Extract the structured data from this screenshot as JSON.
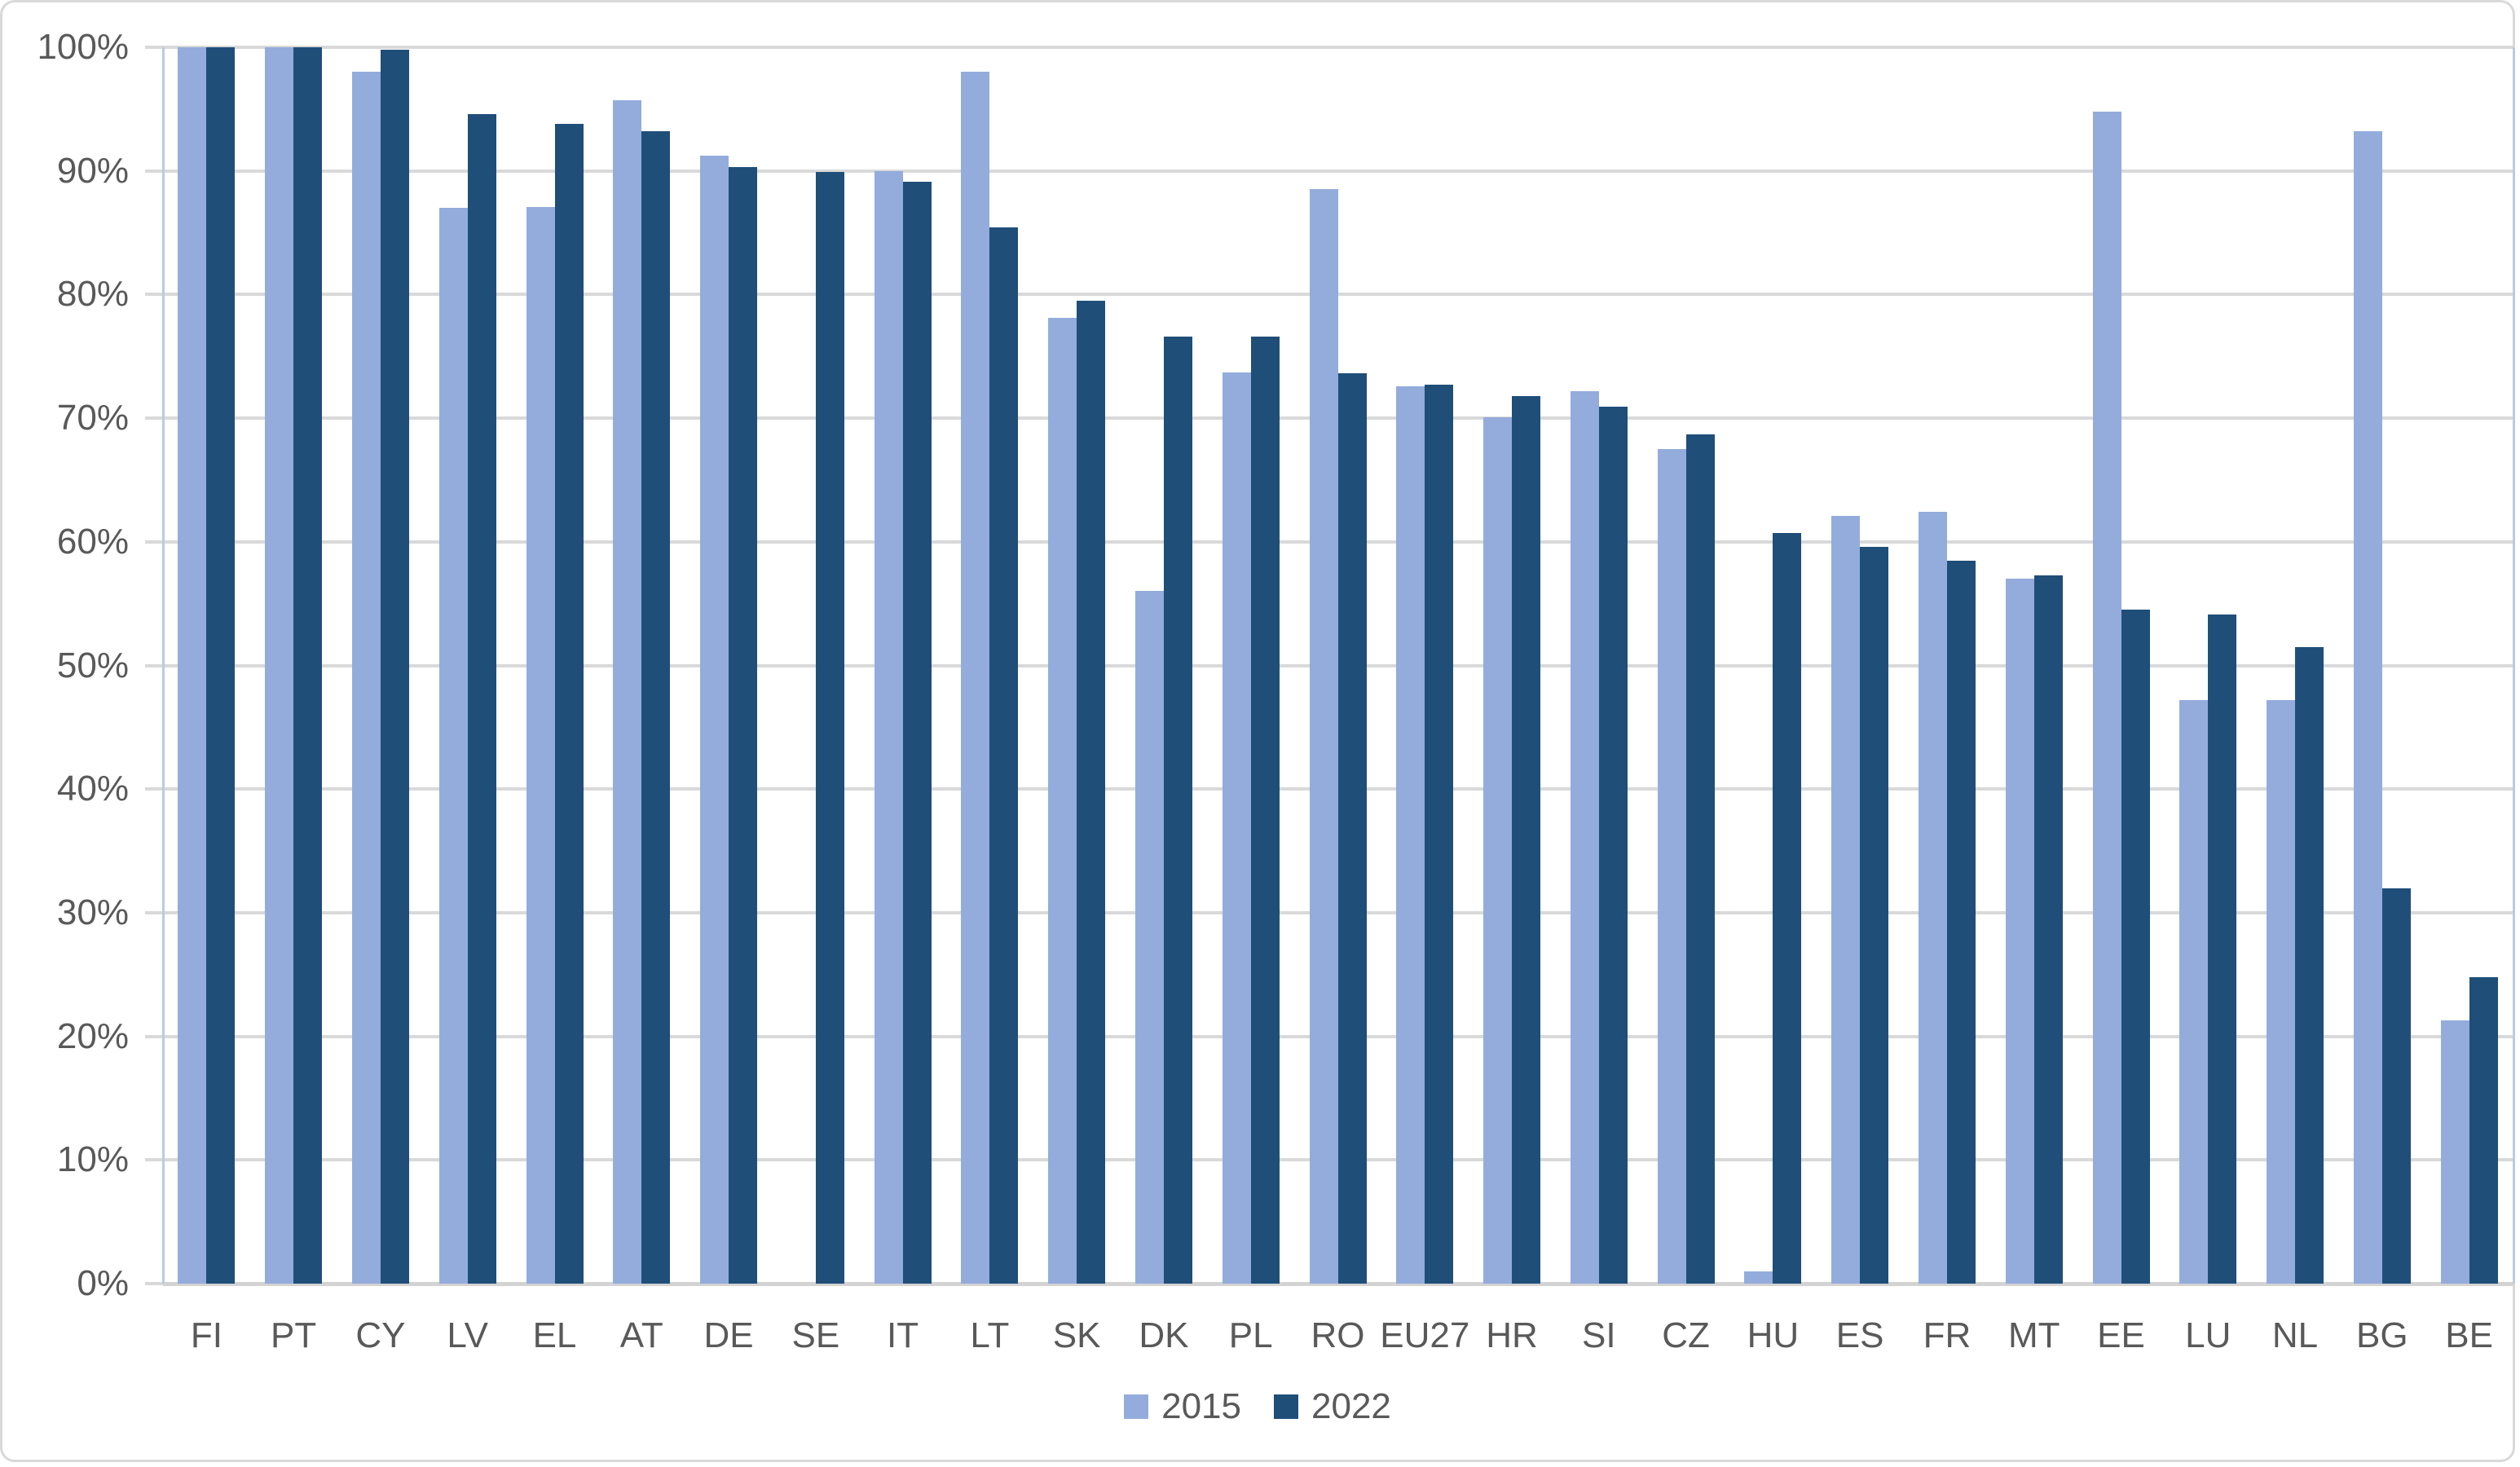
{
  "chart_data": {
    "type": "bar",
    "title": "",
    "xlabel": "",
    "ylabel": "",
    "categories": [
      "FI",
      "PT",
      "CY",
      "LV",
      "EL",
      "AT",
      "DE",
      "SE",
      "IT",
      "LT",
      "SK",
      "DK",
      "PL",
      "RO",
      "EU27",
      "HR",
      "SI",
      "CZ",
      "HU",
      "ES",
      "FR",
      "MT",
      "EE",
      "LU",
      "NL",
      "BG",
      "BE"
    ],
    "series": [
      {
        "name": "2015",
        "color": "#93ACDB",
        "values": [
          100,
          100,
          98.0,
          87.0,
          87.1,
          95.7,
          91.2,
          null,
          90.0,
          98.0,
          78.1,
          56.0,
          73.7,
          88.5,
          72.6,
          70.1,
          72.2,
          67.5,
          1.0,
          62.1,
          62.4,
          57.0,
          94.8,
          47.2,
          47.2,
          93.2,
          21.3
        ]
      },
      {
        "name": "2022",
        "color": "#1F4E79",
        "values": [
          100,
          100,
          99.8,
          94.6,
          93.8,
          93.2,
          90.3,
          89.9,
          89.1,
          85.4,
          79.5,
          76.6,
          76.6,
          73.6,
          72.7,
          71.8,
          70.9,
          68.7,
          60.7,
          59.6,
          58.5,
          57.3,
          54.5,
          54.1,
          51.5,
          32.0,
          24.8
        ]
      }
    ],
    "ylim": [
      0,
      100
    ],
    "ytick_step": 10,
    "ytick_labels": [
      "100%",
      "90%",
      "80%",
      "70%",
      "60%",
      "50%",
      "40%",
      "30%",
      "20%",
      "10%",
      "0%"
    ],
    "grid": true,
    "legend_position": "bottom",
    "notes": "SE has no 2015 bar (missing value)",
    "style": {
      "gridline_color": "#D9D9D9",
      "axis_text_color": "#595959",
      "plot_border_color": "#B8CCE4",
      "chart_border_color": "#D9D9D9",
      "background": "#FFFFFF"
    }
  }
}
